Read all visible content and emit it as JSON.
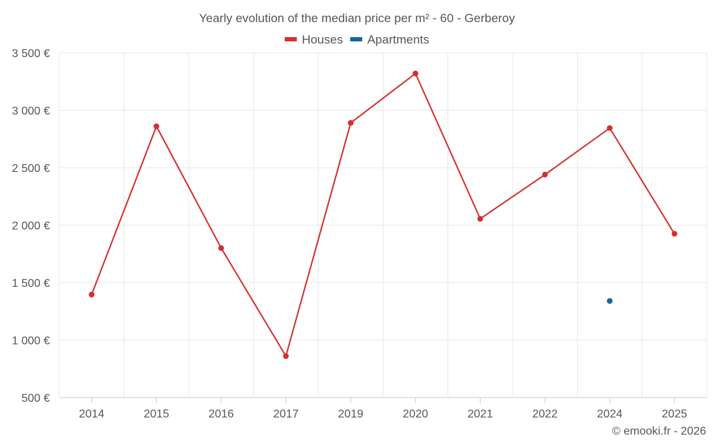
{
  "chart_data": {
    "type": "line",
    "title": "Yearly evolution of the median price per m² - 60 - Gerberoy",
    "categories": [
      "2014",
      "2015",
      "2016",
      "2017",
      "2019",
      "2020",
      "2021",
      "2022",
      "2024",
      "2025"
    ],
    "series": [
      {
        "name": "Houses",
        "color": "#d32f2f",
        "values": [
          1395,
          2860,
          1800,
          860,
          2890,
          3320,
          2055,
          2440,
          2845,
          1925
        ]
      },
      {
        "name": "Apartments",
        "color": "#1565a0",
        "values": [
          null,
          null,
          null,
          null,
          null,
          null,
          null,
          null,
          1340,
          null
        ]
      }
    ],
    "ylim": [
      500,
      3500
    ],
    "yticks": [
      500,
      1000,
      1500,
      2000,
      2500,
      3000,
      3500
    ],
    "ytick_labels": [
      "500 €",
      "1 000 €",
      "1 500 €",
      "2 000 €",
      "2 500 €",
      "3 000 €",
      "3 500 €"
    ],
    "xlabel": "",
    "ylabel": "",
    "legend": "top-center",
    "grid": true
  },
  "credit": "© emooki.fr - 2026"
}
